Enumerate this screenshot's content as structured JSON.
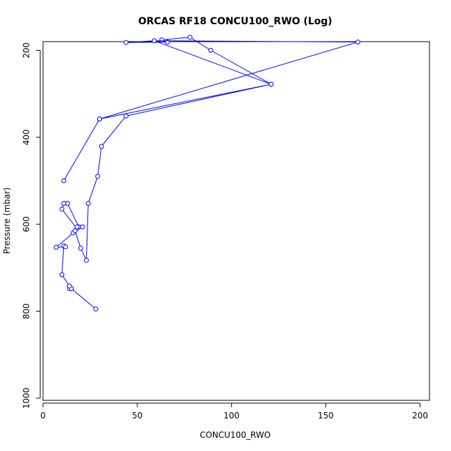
{
  "chart_data": {
    "type": "line",
    "title": "ORCAS RF18 CONCU100_RWO (Log)",
    "xlabel": "CONCU100_RWO",
    "ylabel": "Pressure (mbar)",
    "xlim": [
      0,
      205
    ],
    "ylim": [
      1005,
      180
    ],
    "y_reversed": true,
    "x_ticks": [
      0,
      50,
      100,
      150,
      200
    ],
    "y_ticks": [
      200,
      400,
      600,
      800,
      1000
    ],
    "grid": false,
    "series": [
      {
        "color": "#0000ff",
        "marker": "open-circle",
        "points": [
          [
            28,
            795
          ],
          [
            15,
            748
          ],
          [
            14,
            748
          ],
          [
            15,
            748
          ],
          [
            14,
            742
          ],
          [
            10,
            716
          ],
          [
            11,
            650
          ],
          [
            12,
            652
          ],
          [
            7,
            653
          ],
          [
            16,
            620
          ],
          [
            19,
            606
          ],
          [
            13,
            552
          ],
          [
            11,
            552
          ],
          [
            10,
            565
          ],
          [
            18,
            610
          ],
          [
            18,
            606
          ],
          [
            21,
            606
          ],
          [
            17,
            615
          ],
          [
            20,
            655
          ],
          [
            23,
            683
          ],
          [
            24,
            552
          ],
          [
            29,
            490
          ],
          [
            31,
            421
          ],
          [
            44,
            351
          ],
          [
            121,
            278
          ],
          [
            59,
            178
          ],
          [
            44,
            182
          ],
          [
            66,
            181
          ],
          [
            63,
            176
          ],
          [
            78,
            170
          ],
          [
            89,
            200
          ],
          [
            121,
            278
          ],
          [
            30,
            358
          ],
          [
            11,
            500
          ]
        ]
      },
      {
        "color": "#0000ff",
        "marker": "open-circle",
        "points": [
          [
            59,
            178
          ],
          [
            167,
            181
          ],
          [
            30,
            358
          ]
        ]
      }
    ]
  }
}
